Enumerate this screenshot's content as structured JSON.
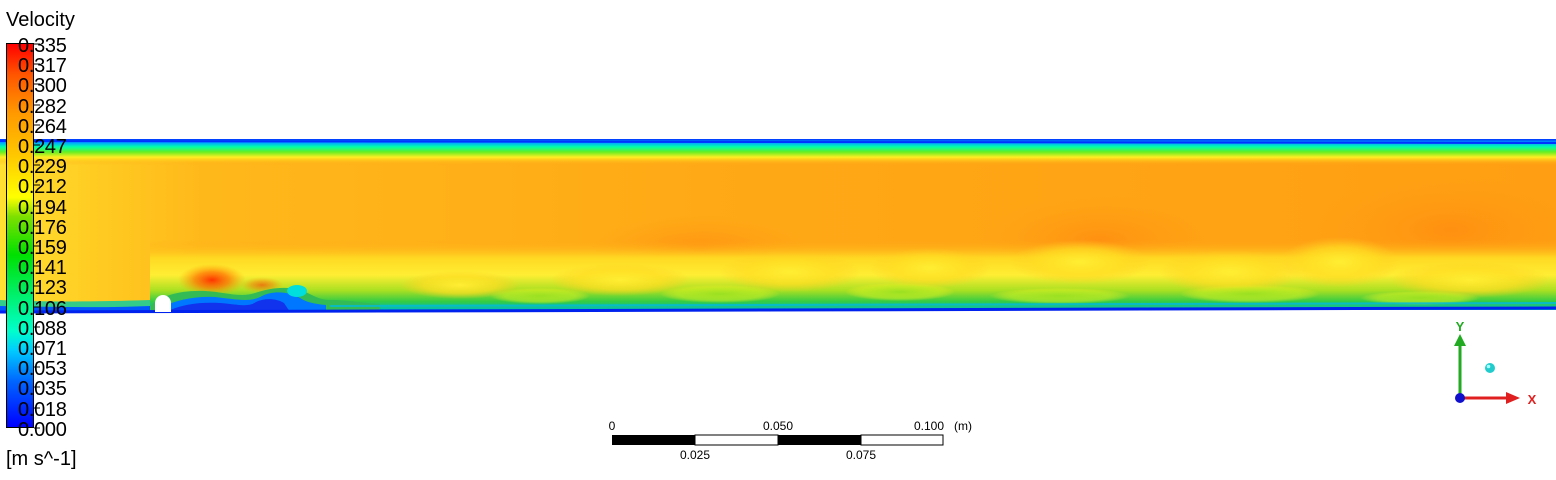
{
  "legend": {
    "title": "Velocity",
    "units": "[m s^-1]",
    "labels": [
      "0.335",
      "0.317",
      "0.300",
      "0.282",
      "0.264",
      "0.247",
      "0.229",
      "0.212",
      "0.194",
      "0.176",
      "0.159",
      "0.141",
      "0.123",
      "0.106",
      "0.088",
      "0.071",
      "0.053",
      "0.035",
      "0.018",
      "0.000"
    ],
    "colors": [
      "#ff0000",
      "#ff9900",
      "#ffcc00",
      "#ffff00",
      "#00e000",
      "#00ffcc",
      "#0066ff",
      "#0000ff"
    ]
  },
  "scale_bar": {
    "top_labels": [
      "0",
      "0.050",
      "0.100"
    ],
    "bottom_labels": [
      "0.025",
      "0.075"
    ],
    "unit": "(m)"
  },
  "axes": {
    "y_label": "Y",
    "x_label": "X",
    "y_color": "#22aa22",
    "x_color": "#e02020",
    "z_color": "#1010cc"
  },
  "field": {
    "colors": {
      "bulk": "#ffa614",
      "bulk_end": "#ff9c12",
      "inlet": "#ffe033",
      "shear_yellow": "#ffee22",
      "shear_green": "#88dd22",
      "wake_green": "#33cc33",
      "wall_blue": "#0055ff",
      "deep_blue": "#0022ee",
      "hotspot": "#ff4a00",
      "cyan": "#00dddd"
    }
  }
}
